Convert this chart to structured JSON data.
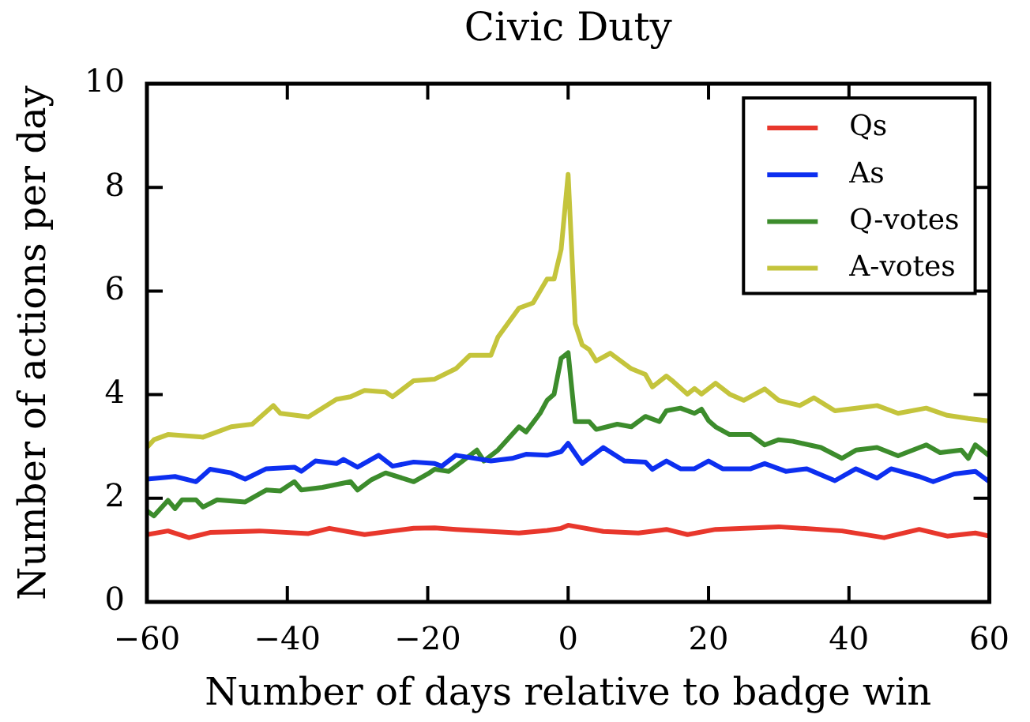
{
  "chart_data": {
    "type": "line",
    "title": "Civic Duty",
    "xlabel": "Number of days relative to badge win",
    "ylabel": "Number of actions per day",
    "xlim": [
      -60,
      60
    ],
    "ylim": [
      0,
      10
    ],
    "xticks": [
      {
        "value": -60,
        "label": "−60"
      },
      {
        "value": -40,
        "label": "−40"
      },
      {
        "value": -20,
        "label": "−20"
      },
      0,
      20,
      40,
      60
    ],
    "yticks": [
      0,
      2,
      4,
      6,
      8,
      10
    ],
    "legend": "top right",
    "series": [
      {
        "name": "Qs",
        "color": "#e8372c",
        "x": [
          -60,
          -57,
          -54,
          -51,
          -44,
          -37,
          -34,
          -29,
          -25,
          -22,
          -19,
          -16,
          -7,
          -3,
          -1,
          0,
          5,
          10,
          14,
          17,
          21,
          30,
          39,
          45,
          50,
          54,
          58,
          60
        ],
        "values": [
          1.3,
          1.37,
          1.24,
          1.34,
          1.37,
          1.32,
          1.42,
          1.3,
          1.37,
          1.42,
          1.43,
          1.4,
          1.33,
          1.38,
          1.42,
          1.48,
          1.36,
          1.33,
          1.4,
          1.3,
          1.4,
          1.45,
          1.37,
          1.24,
          1.4,
          1.27,
          1.33,
          1.27
        ]
      },
      {
        "name": "As",
        "color": "#0d2ff0",
        "x": [
          -60,
          -56,
          -53,
          -51,
          -48,
          -46,
          -43,
          -39,
          -38,
          -36,
          -33,
          -32,
          -30,
          -27,
          -25,
          -22,
          -19,
          -18,
          -16,
          -11,
          -8,
          -6,
          -3,
          -1,
          0,
          2,
          5,
          8,
          11,
          12,
          14,
          16,
          18,
          20,
          22,
          26,
          28,
          31,
          34,
          38,
          41,
          44,
          46,
          50,
          52,
          55,
          58,
          60
        ],
        "values": [
          2.37,
          2.42,
          2.32,
          2.56,
          2.49,
          2.37,
          2.57,
          2.6,
          2.52,
          2.72,
          2.67,
          2.75,
          2.6,
          2.83,
          2.62,
          2.7,
          2.67,
          2.62,
          2.83,
          2.72,
          2.77,
          2.85,
          2.83,
          2.9,
          3.06,
          2.67,
          2.98,
          2.72,
          2.7,
          2.56,
          2.72,
          2.57,
          2.57,
          2.72,
          2.57,
          2.57,
          2.67,
          2.52,
          2.57,
          2.34,
          2.57,
          2.39,
          2.57,
          2.42,
          2.32,
          2.47,
          2.52,
          2.32
        ]
      },
      {
        "name": "Q-votes",
        "color": "#3c8c2c",
        "x": [
          -60,
          -59,
          -57,
          -56,
          -55,
          -53,
          -52,
          -50,
          -46,
          -43,
          -41,
          -39,
          -38,
          -35,
          -31,
          -30,
          -28,
          -26,
          -22,
          -20,
          -19,
          -17,
          -16,
          -13,
          -12,
          -10,
          -7,
          -6,
          -4,
          -3,
          -2,
          -1,
          0,
          1,
          3,
          4,
          7,
          9,
          11,
          13,
          14,
          16,
          18,
          19,
          20,
          21,
          23,
          26,
          28,
          30,
          32,
          36,
          39,
          41,
          44,
          47,
          51,
          53,
          56,
          57,
          58,
          60
        ],
        "values": [
          1.76,
          1.66,
          1.96,
          1.8,
          1.97,
          1.97,
          1.83,
          1.97,
          1.93,
          2.16,
          2.14,
          2.32,
          2.16,
          2.21,
          2.32,
          2.16,
          2.36,
          2.49,
          2.32,
          2.47,
          2.56,
          2.52,
          2.62,
          2.93,
          2.72,
          2.93,
          3.38,
          3.28,
          3.64,
          3.89,
          4.01,
          4.7,
          4.81,
          3.48,
          3.48,
          3.33,
          3.43,
          3.38,
          3.58,
          3.48,
          3.69,
          3.74,
          3.64,
          3.72,
          3.5,
          3.38,
          3.23,
          3.23,
          3.03,
          3.13,
          3.1,
          2.98,
          2.77,
          2.93,
          2.98,
          2.82,
          3.03,
          2.88,
          2.93,
          2.77,
          3.03,
          2.82
        ]
      },
      {
        "name": "A-votes",
        "color": "#c4c43c",
        "x": [
          -60,
          -59,
          -57,
          -52,
          -48,
          -45,
          -42,
          -41,
          -37,
          -33,
          -31,
          -29,
          -26,
          -25,
          -22,
          -19,
          -16,
          -14,
          -11,
          -10,
          -7,
          -5,
          -3,
          -2,
          -1,
          0,
          1,
          2,
          3,
          4,
          6,
          9,
          11,
          12,
          14,
          15,
          17,
          18,
          19,
          21,
          23,
          25,
          28,
          30,
          33,
          35,
          38,
          41,
          44,
          47,
          51,
          54,
          57,
          60
        ],
        "values": [
          2.98,
          3.13,
          3.23,
          3.18,
          3.38,
          3.43,
          3.79,
          3.64,
          3.57,
          3.91,
          3.96,
          4.08,
          4.05,
          3.96,
          4.27,
          4.3,
          4.5,
          4.76,
          4.76,
          5.11,
          5.67,
          5.77,
          6.23,
          6.23,
          6.8,
          8.25,
          5.37,
          4.96,
          4.87,
          4.65,
          4.8,
          4.5,
          4.39,
          4.15,
          4.36,
          4.25,
          4.01,
          4.12,
          4.01,
          4.22,
          4.01,
          3.89,
          4.11,
          3.89,
          3.79,
          3.94,
          3.69,
          3.74,
          3.79,
          3.64,
          3.74,
          3.6,
          3.54,
          3.49
        ]
      }
    ]
  }
}
